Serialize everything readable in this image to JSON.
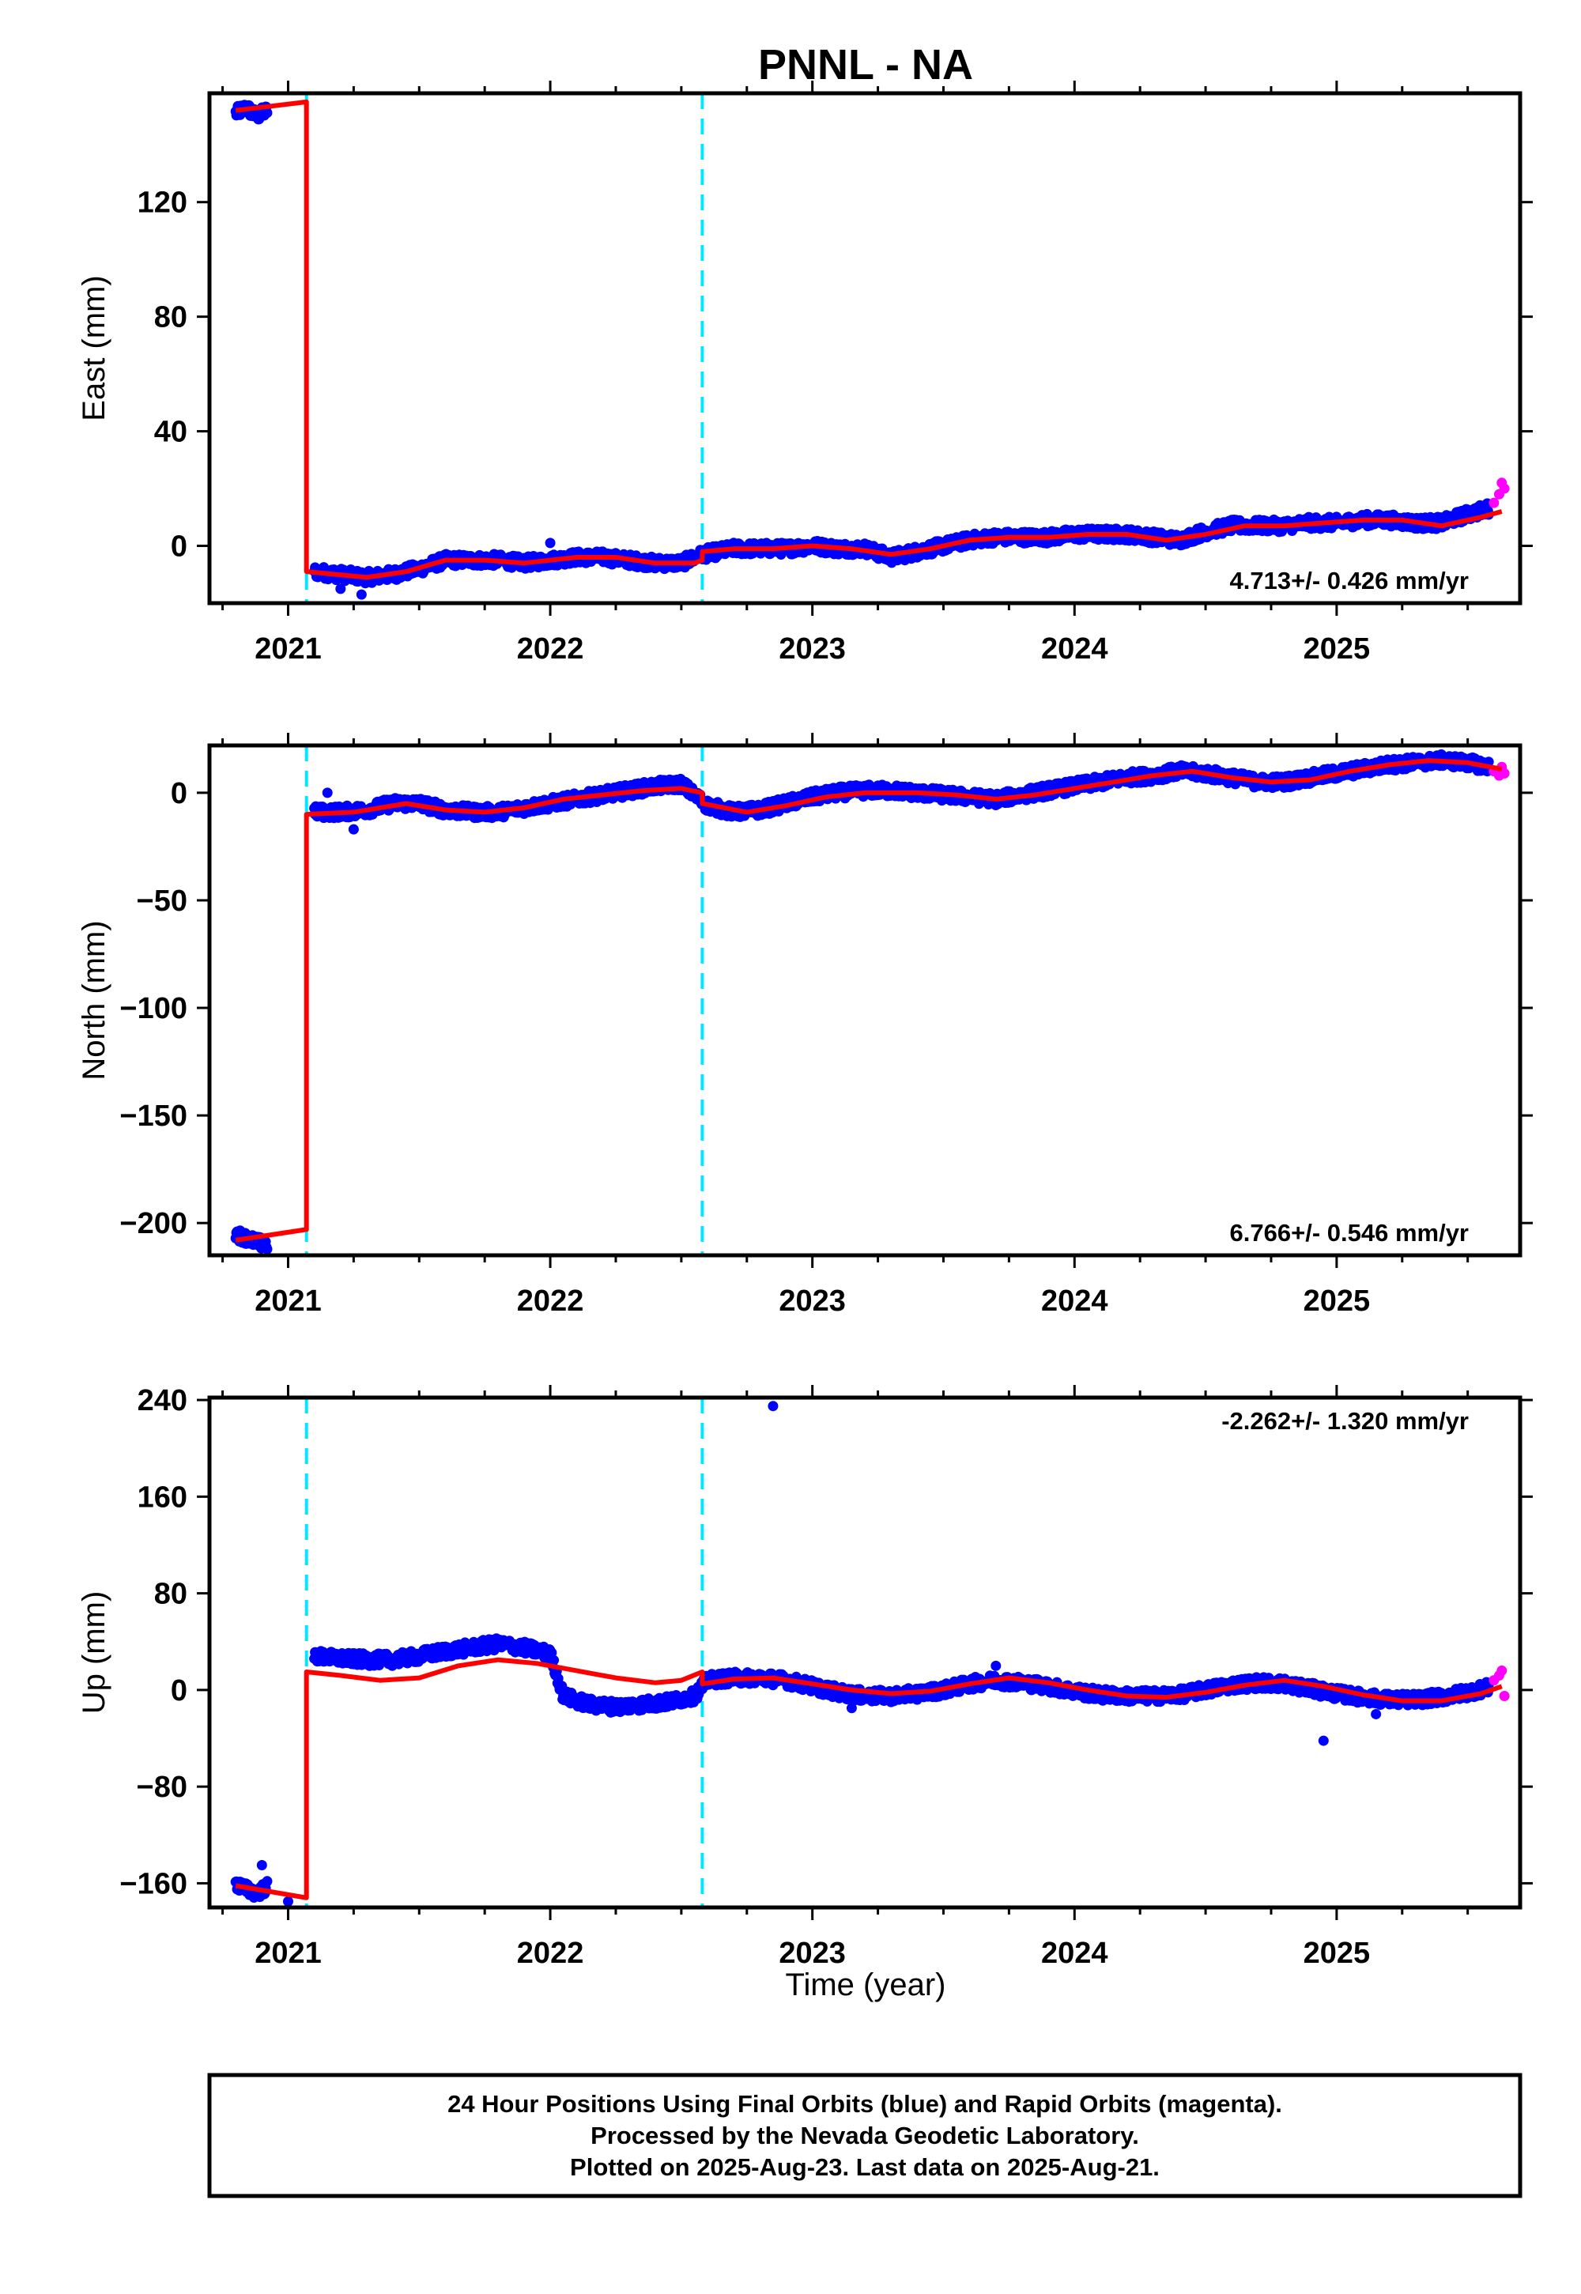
{
  "title": "PNNL - NA",
  "xlabel": "Time (year)",
  "colors": {
    "final": "#0000ff",
    "rapid": "#ff00ff",
    "model": "#ff0000",
    "discontinuity": "#00e8ff",
    "frame": "#000000"
  },
  "footer": {
    "line1": "24 Hour Positions Using Final Orbits (blue) and Rapid Orbits (magenta).",
    "line2": "Processed by the Nevada Geodetic Laboratory.",
    "line3": "Plotted on 2025-Aug-23. Last data on 2025-Aug-21."
  },
  "chart_data": [
    {
      "type": "scatter",
      "ylabel": "East (mm)",
      "rate_text": "4.713+/- 0.426 mm/yr",
      "xlim": [
        2020.7,
        2025.7
      ],
      "ylim": [
        -20,
        158
      ],
      "yticks": [
        0,
        40,
        80,
        120
      ],
      "xticks": [
        2021,
        2022,
        2023,
        2024,
        2025
      ],
      "discontinuities": [
        2021.07,
        2022.58
      ],
      "model": [
        [
          2020.8,
          152
        ],
        [
          2021.07,
          155
        ],
        [
          2021.07,
          -9
        ],
        [
          2021.3,
          -11
        ],
        [
          2021.45,
          -9
        ],
        [
          2021.6,
          -5
        ],
        [
          2021.75,
          -5
        ],
        [
          2021.9,
          -6
        ],
        [
          2022.1,
          -4
        ],
        [
          2022.25,
          -4
        ],
        [
          2022.4,
          -6
        ],
        [
          2022.55,
          -6
        ],
        [
          2022.58,
          -5
        ],
        [
          2022.58,
          -2
        ],
        [
          2022.7,
          -1
        ],
        [
          2022.85,
          -1
        ],
        [
          2023.0,
          0
        ],
        [
          2023.15,
          -1
        ],
        [
          2023.3,
          -3
        ],
        [
          2023.45,
          -1
        ],
        [
          2023.6,
          2
        ],
        [
          2023.75,
          3
        ],
        [
          2023.9,
          3
        ],
        [
          2024.05,
          4
        ],
        [
          2024.2,
          4
        ],
        [
          2024.35,
          2
        ],
        [
          2024.5,
          4
        ],
        [
          2024.65,
          7
        ],
        [
          2024.8,
          7
        ],
        [
          2024.95,
          8
        ],
        [
          2025.1,
          9
        ],
        [
          2025.25,
          9
        ],
        [
          2025.4,
          7
        ],
        [
          2025.55,
          10
        ],
        [
          2025.63,
          12
        ]
      ],
      "final_series": [
        [
          2020.8,
          151
        ],
        [
          2020.84,
          153
        ],
        [
          2020.88,
          150
        ],
        [
          2020.92,
          152
        ],
        [
          2021.1,
          -9
        ],
        [
          2021.2,
          -10
        ],
        [
          2021.3,
          -11
        ],
        [
          2021.4,
          -10
        ],
        [
          2021.5,
          -8
        ],
        [
          2021.6,
          -5
        ],
        [
          2021.7,
          -5
        ],
        [
          2021.8,
          -5
        ],
        [
          2021.9,
          -6
        ],
        [
          2022.0,
          -5
        ],
        [
          2022.1,
          -4
        ],
        [
          2022.2,
          -4
        ],
        [
          2022.3,
          -5
        ],
        [
          2022.4,
          -6
        ],
        [
          2022.5,
          -6
        ],
        [
          2022.58,
          -3
        ],
        [
          2022.7,
          -1
        ],
        [
          2022.8,
          -1
        ],
        [
          2022.9,
          -1
        ],
        [
          2023.0,
          0
        ],
        [
          2023.1,
          -1
        ],
        [
          2023.2,
          -1
        ],
        [
          2023.3,
          -4
        ],
        [
          2023.4,
          -2
        ],
        [
          2023.5,
          0
        ],
        [
          2023.6,
          2
        ],
        [
          2023.7,
          3
        ],
        [
          2023.8,
          3
        ],
        [
          2023.9,
          3
        ],
        [
          2024.0,
          4
        ],
        [
          2024.1,
          4
        ],
        [
          2024.2,
          4
        ],
        [
          2024.3,
          3
        ],
        [
          2024.4,
          2
        ],
        [
          2024.5,
          5
        ],
        [
          2024.6,
          7
        ],
        [
          2024.7,
          7
        ],
        [
          2024.8,
          7
        ],
        [
          2024.9,
          8
        ],
        [
          2025.0,
          8
        ],
        [
          2025.1,
          9
        ],
        [
          2025.2,
          9
        ],
        [
          2025.3,
          8
        ],
        [
          2025.4,
          8
        ],
        [
          2025.5,
          11
        ],
        [
          2025.58,
          13
        ]
      ],
      "rapid_points": [
        [
          2025.6,
          15
        ],
        [
          2025.62,
          18
        ],
        [
          2025.63,
          22
        ],
        [
          2025.64,
          20
        ]
      ],
      "outliers": [
        [
          2021.2,
          -15
        ],
        [
          2021.28,
          -17
        ],
        [
          2022.0,
          1
        ]
      ]
    },
    {
      "type": "scatter",
      "ylabel": "North (mm)",
      "rate_text": "6.766+/- 0.546 mm/yr",
      "xlim": [
        2020.7,
        2025.7
      ],
      "ylim": [
        -215,
        22
      ],
      "yticks": [
        0,
        -50,
        -100,
        -150,
        -200
      ],
      "xticks": [
        2021,
        2022,
        2023,
        2024,
        2025
      ],
      "discontinuities": [
        2021.07,
        2022.58
      ],
      "model": [
        [
          2020.8,
          -208
        ],
        [
          2021.07,
          -203
        ],
        [
          2021.07,
          -10
        ],
        [
          2021.25,
          -9
        ],
        [
          2021.45,
          -5
        ],
        [
          2021.6,
          -8
        ],
        [
          2021.75,
          -9
        ],
        [
          2021.9,
          -7
        ],
        [
          2022.05,
          -3
        ],
        [
          2022.2,
          -1
        ],
        [
          2022.35,
          1
        ],
        [
          2022.5,
          2
        ],
        [
          2022.58,
          0
        ],
        [
          2022.58,
          -5
        ],
        [
          2022.75,
          -9
        ],
        [
          2022.9,
          -6
        ],
        [
          2023.05,
          -2
        ],
        [
          2023.2,
          0
        ],
        [
          2023.4,
          0
        ],
        [
          2023.55,
          -1
        ],
        [
          2023.7,
          -3
        ],
        [
          2023.85,
          -1
        ],
        [
          2024.0,
          2
        ],
        [
          2024.15,
          5
        ],
        [
          2024.3,
          8
        ],
        [
          2024.45,
          10
        ],
        [
          2024.6,
          7
        ],
        [
          2024.75,
          5
        ],
        [
          2024.9,
          6
        ],
        [
          2025.05,
          10
        ],
        [
          2025.2,
          13
        ],
        [
          2025.35,
          15
        ],
        [
          2025.5,
          14
        ],
        [
          2025.63,
          11
        ]
      ],
      "final_series": [
        [
          2020.8,
          -205
        ],
        [
          2020.84,
          -207
        ],
        [
          2020.88,
          -209
        ],
        [
          2020.92,
          -210
        ],
        [
          2021.1,
          -9
        ],
        [
          2021.2,
          -9
        ],
        [
          2021.3,
          -8
        ],
        [
          2021.4,
          -5
        ],
        [
          2021.5,
          -5
        ],
        [
          2021.6,
          -8
        ],
        [
          2021.7,
          -9
        ],
        [
          2021.8,
          -9
        ],
        [
          2021.9,
          -7
        ],
        [
          2022.0,
          -5
        ],
        [
          2022.1,
          -3
        ],
        [
          2022.2,
          -1
        ],
        [
          2022.3,
          1
        ],
        [
          2022.4,
          3
        ],
        [
          2022.5,
          4
        ],
        [
          2022.6,
          -6
        ],
        [
          2022.7,
          -9
        ],
        [
          2022.8,
          -8
        ],
        [
          2022.9,
          -5
        ],
        [
          2023.0,
          -2
        ],
        [
          2023.1,
          0
        ],
        [
          2023.2,
          1
        ],
        [
          2023.3,
          1
        ],
        [
          2023.4,
          0
        ],
        [
          2023.5,
          -1
        ],
        [
          2023.6,
          -2
        ],
        [
          2023.7,
          -3
        ],
        [
          2023.8,
          -1
        ],
        [
          2023.9,
          1
        ],
        [
          2024.0,
          3
        ],
        [
          2024.1,
          5
        ],
        [
          2024.2,
          7
        ],
        [
          2024.3,
          8
        ],
        [
          2024.4,
          10
        ],
        [
          2024.5,
          9
        ],
        [
          2024.6,
          7
        ],
        [
          2024.7,
          5
        ],
        [
          2024.8,
          5
        ],
        [
          2024.9,
          7
        ],
        [
          2025.0,
          9
        ],
        [
          2025.1,
          11
        ],
        [
          2025.2,
          13
        ],
        [
          2025.3,
          14
        ],
        [
          2025.4,
          15
        ],
        [
          2025.5,
          14
        ],
        [
          2025.58,
          12
        ]
      ],
      "rapid_points": [
        [
          2025.6,
          10
        ],
        [
          2025.62,
          8
        ],
        [
          2025.63,
          12
        ],
        [
          2025.64,
          9
        ]
      ],
      "outliers": [
        [
          2021.15,
          0
        ],
        [
          2021.25,
          -17
        ]
      ]
    },
    {
      "type": "scatter",
      "ylabel": "Up (mm)",
      "rate_text": "-2.262+/- 1.320 mm/yr",
      "xlim": [
        2020.7,
        2025.7
      ],
      "ylim": [
        -180,
        242
      ],
      "yticks": [
        240,
        160,
        80,
        0,
        -80,
        -160
      ],
      "xticks": [
        2021,
        2022,
        2023,
        2024,
        2025
      ],
      "discontinuities": [
        2021.07,
        2022.58
      ],
      "model": [
        [
          2020.8,
          -162
        ],
        [
          2021.07,
          -172
        ],
        [
          2021.07,
          15
        ],
        [
          2021.2,
          12
        ],
        [
          2021.35,
          8
        ],
        [
          2021.5,
          10
        ],
        [
          2021.65,
          20
        ],
        [
          2021.8,
          25
        ],
        [
          2021.95,
          22
        ],
        [
          2022.1,
          16
        ],
        [
          2022.25,
          10
        ],
        [
          2022.4,
          6
        ],
        [
          2022.5,
          8
        ],
        [
          2022.58,
          15
        ],
        [
          2022.58,
          5
        ],
        [
          2022.7,
          9
        ],
        [
          2022.85,
          10
        ],
        [
          2023.0,
          5
        ],
        [
          2023.15,
          0
        ],
        [
          2023.3,
          -3
        ],
        [
          2023.45,
          -1
        ],
        [
          2023.6,
          5
        ],
        [
          2023.75,
          10
        ],
        [
          2023.9,
          6
        ],
        [
          2024.05,
          0
        ],
        [
          2024.2,
          -5
        ],
        [
          2024.35,
          -6
        ],
        [
          2024.5,
          -2
        ],
        [
          2024.65,
          4
        ],
        [
          2024.8,
          8
        ],
        [
          2024.95,
          3
        ],
        [
          2025.1,
          -4
        ],
        [
          2025.25,
          -9
        ],
        [
          2025.4,
          -9
        ],
        [
          2025.55,
          -3
        ],
        [
          2025.63,
          3
        ]
      ],
      "final_series": [
        [
          2020.8,
          -160
        ],
        [
          2020.84,
          -165
        ],
        [
          2020.88,
          -168
        ],
        [
          2020.92,
          -163
        ],
        [
          2021.1,
          28
        ],
        [
          2021.2,
          26
        ],
        [
          2021.3,
          25
        ],
        [
          2021.4,
          25
        ],
        [
          2021.5,
          28
        ],
        [
          2021.6,
          32
        ],
        [
          2021.7,
          35
        ],
        [
          2021.8,
          38
        ],
        [
          2021.9,
          35
        ],
        [
          2022.0,
          30
        ],
        [
          2022.05,
          -5
        ],
        [
          2022.15,
          -12
        ],
        [
          2022.25,
          -14
        ],
        [
          2022.35,
          -12
        ],
        [
          2022.45,
          -10
        ],
        [
          2022.55,
          -5
        ],
        [
          2022.6,
          8
        ],
        [
          2022.7,
          10
        ],
        [
          2022.8,
          10
        ],
        [
          2022.9,
          8
        ],
        [
          2023.0,
          3
        ],
        [
          2023.1,
          -2
        ],
        [
          2023.2,
          -5
        ],
        [
          2023.3,
          -5
        ],
        [
          2023.4,
          -3
        ],
        [
          2023.5,
          0
        ],
        [
          2023.6,
          5
        ],
        [
          2023.7,
          8
        ],
        [
          2023.8,
          6
        ],
        [
          2023.9,
          3
        ],
        [
          2024.0,
          -1
        ],
        [
          2024.1,
          -4
        ],
        [
          2024.2,
          -5
        ],
        [
          2024.3,
          -5
        ],
        [
          2024.4,
          -4
        ],
        [
          2024.5,
          0
        ],
        [
          2024.6,
          4
        ],
        [
          2024.7,
          6
        ],
        [
          2024.8,
          5
        ],
        [
          2024.9,
          1
        ],
        [
          2025.0,
          -3
        ],
        [
          2025.1,
          -6
        ],
        [
          2025.2,
          -8
        ],
        [
          2025.3,
          -8
        ],
        [
          2025.4,
          -6
        ],
        [
          2025.5,
          -2
        ],
        [
          2025.58,
          2
        ]
      ],
      "rapid_points": [
        [
          2025.6,
          8
        ],
        [
          2025.62,
          12
        ],
        [
          2025.63,
          16
        ],
        [
          2025.64,
          -5
        ]
      ],
      "outliers": [
        [
          2020.9,
          -145
        ],
        [
          2021.0,
          -175
        ],
        [
          2022.0,
          28
        ],
        [
          2022.85,
          235
        ],
        [
          2023.7,
          20
        ],
        [
          2024.95,
          -42
        ],
        [
          2025.15,
          -20
        ],
        [
          2023.15,
          -15
        ]
      ]
    }
  ]
}
